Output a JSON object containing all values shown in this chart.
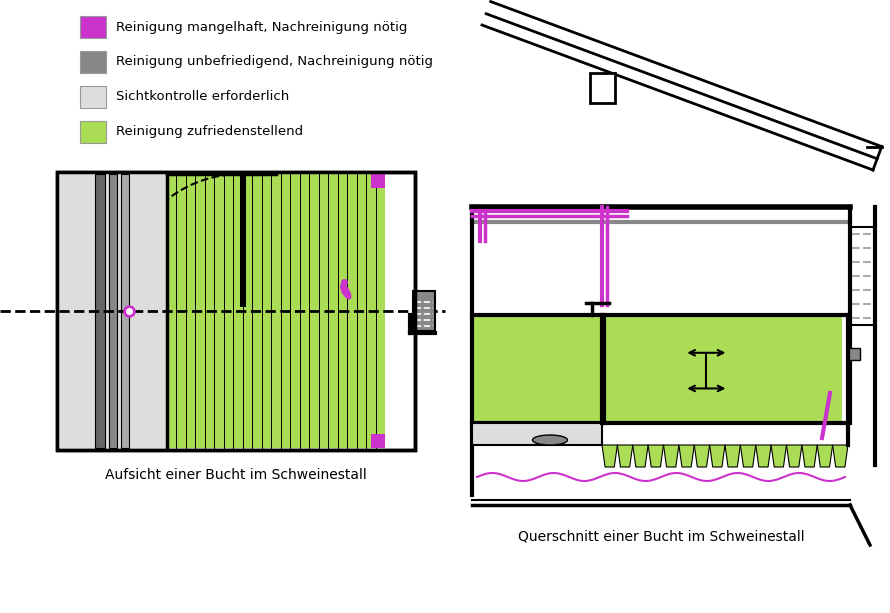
{
  "legend_items": [
    {
      "color": "#CC33CC",
      "label": "Reinigung mangelhaft, Nachreinigung nötig"
    },
    {
      "color": "#888888",
      "label": "Reinigung unbefriedigend, Nachreinigung nötig"
    },
    {
      "color": "#DDDDDD",
      "label": "Sichtkontrolle erforderlich"
    },
    {
      "color": "#AADD55",
      "label": "Reinigung zufriedenstellend"
    }
  ],
  "caption_left": "Aufsicht einer Bucht im Schweinestall",
  "caption_right": "Querschnitt einer Bucht im Schweinestall",
  "purple": "#CC33CC",
  "green": "#AADD55",
  "gray": "#888888",
  "lightgray": "#DDDDDD",
  "darkgray": "#555555",
  "black": "#000000",
  "white": "#FFFFFF"
}
